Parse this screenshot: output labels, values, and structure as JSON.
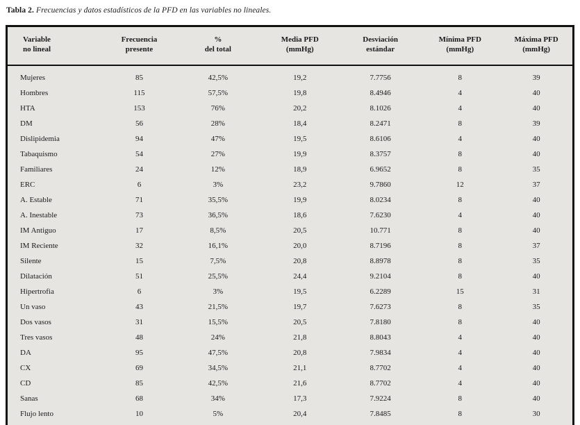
{
  "caption": {
    "prefix": "Tabla 2.",
    "text": "Frecuencias y datos estadísticos de la PFD en las variables no lineales."
  },
  "table": {
    "columns": [
      {
        "line1": "Variable",
        "line2": "no lineal"
      },
      {
        "line1": "Frecuencia",
        "line2": "presente"
      },
      {
        "line1": "%",
        "line2": "del total"
      },
      {
        "line1": "Media PFD",
        "line2": "(mmHg)"
      },
      {
        "line1": "Desviación",
        "line2": "estándar"
      },
      {
        "line1": "Mínima PFD",
        "line2": "(mmHg)"
      },
      {
        "line1": "Máxima PFD",
        "line2": "(mmHg)"
      }
    ],
    "rows": [
      [
        "Mujeres",
        "85",
        "42,5%",
        "19,2",
        "7.7756",
        "8",
        "39"
      ],
      [
        "Hombres",
        "115",
        "57,5%",
        "19,8",
        "8.4946",
        "4",
        "40"
      ],
      [
        "HTA",
        "153",
        "76%",
        "20,2",
        "8.1026",
        "4",
        "40"
      ],
      [
        "DM",
        "56",
        "28%",
        "18,4",
        "8.2471",
        "8",
        "39"
      ],
      [
        "Dislipidemia",
        "94",
        "47%",
        "19,5",
        "8.6106",
        "4",
        "40"
      ],
      [
        "Tabaquismo",
        "54",
        "27%",
        "19,9",
        "8.3757",
        "8",
        "40"
      ],
      [
        "Familiares",
        "24",
        "12%",
        "18,9",
        "6.9652",
        "8",
        "35"
      ],
      [
        "ERC",
        "6",
        "3%",
        "23,2",
        "9.7860",
        "12",
        "37"
      ],
      [
        "A. Estable",
        "71",
        "35,5%",
        "19,9",
        "8.0234",
        "8",
        "40"
      ],
      [
        "A. Inestable",
        "73",
        "36,5%",
        "18,6",
        "7.6230",
        "4",
        "40"
      ],
      [
        "IM Antiguo",
        "17",
        "8,5%",
        "20,5",
        "10.771",
        "8",
        "40"
      ],
      [
        "IM Reciente",
        "32",
        "16,1%",
        "20,0",
        "8.7196",
        "8",
        "37"
      ],
      [
        "Silente",
        "15",
        "7,5%",
        "20,8",
        "8.8978",
        "8",
        "35"
      ],
      [
        "Dilatación",
        "51",
        "25,5%",
        "24,4",
        "9.2104",
        "8",
        "40"
      ],
      [
        "Hipertrofia",
        "6",
        "3%",
        "19,5",
        "6.2289",
        "15",
        "31"
      ],
      [
        "Un vaso",
        "43",
        "21,5%",
        "19,7",
        "7.6273",
        "8",
        "35"
      ],
      [
        "Dos vasos",
        "31",
        "15,5%",
        "20,5",
        "7.8180",
        "8",
        "40"
      ],
      [
        "Tres vasos",
        "48",
        "24%",
        "21,8",
        "8.8043",
        "4",
        "40"
      ],
      [
        "DA",
        "95",
        "47,5%",
        "20,8",
        "7.9834",
        "4",
        "40"
      ],
      [
        "CX",
        "69",
        "34,5%",
        "21,1",
        "8.7702",
        "4",
        "40"
      ],
      [
        "CD",
        "85",
        "42,5%",
        "21,6",
        "8.7702",
        "4",
        "40"
      ],
      [
        "Sanas",
        "68",
        "34%",
        "17,3",
        "7.9224",
        "8",
        "40"
      ],
      [
        "Flujo lento",
        "10",
        "5%",
        "20,4",
        "7.8485",
        "8",
        "30"
      ]
    ]
  },
  "colors": {
    "page_background": "#ffffff",
    "table_background": "#e6e5e2",
    "table_border": "#111111",
    "text": "#1a1a1a"
  }
}
